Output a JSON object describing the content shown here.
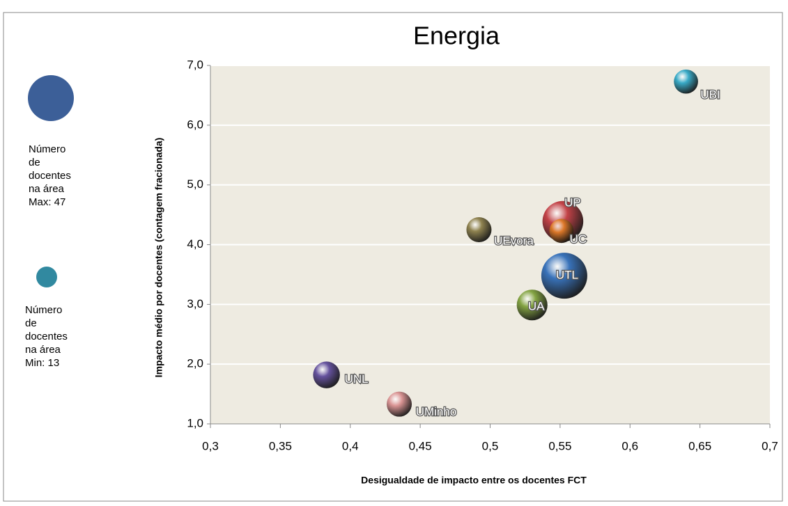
{
  "chart_data": {
    "type": "bubble",
    "title": "Energia",
    "x_label": "Desigualdade de impacto entre os docentes FCT",
    "y_label": "Impacto  médio por docentes (contagem fracionada)",
    "labels": [
      "UBI",
      "UP",
      "UC",
      "UEvora",
      "UTL",
      "UA",
      "UNL",
      "UMinho"
    ],
    "x": [
      0.64,
      0.552,
      0.551,
      0.492,
      0.553,
      0.53,
      0.383,
      0.435
    ],
    "values": [
      6.73,
      4.39,
      4.23,
      4.25,
      3.48,
      2.99,
      1.82,
      1.33
    ],
    "sizes": [
      13,
      37,
      13,
      14,
      47,
      21,
      16,
      14
    ],
    "colors": [
      "#2fa7c6",
      "#c0393f",
      "#e07b28",
      "#8a7d48",
      "#2f6cb8",
      "#7ea03a",
      "#5e4a9a",
      "#d99090"
    ],
    "xlim": [
      0.3,
      0.7
    ],
    "xticks": [
      {
        "value": 0.3,
        "label": "0,3"
      },
      {
        "value": 0.35,
        "label": "0,35"
      },
      {
        "value": 0.4,
        "label": "0,4"
      },
      {
        "value": 0.45,
        "label": "0,45"
      },
      {
        "value": 0.5,
        "label": "0,5"
      },
      {
        "value": 0.55,
        "label": "0,55"
      },
      {
        "value": 0.6,
        "label": "0,6"
      },
      {
        "value": 0.65,
        "label": "0,65"
      },
      {
        "value": 0.7,
        "label": "0,7"
      }
    ],
    "ylim": [
      1,
      7
    ],
    "yticks": [
      {
        "value": 1,
        "label": "1,0"
      },
      {
        "value": 2,
        "label": "2,0"
      },
      {
        "value": 3,
        "label": "3,0"
      },
      {
        "value": 4,
        "label": "4,0"
      },
      {
        "value": 5,
        "label": "5,0"
      },
      {
        "value": 6,
        "label": "6,0"
      },
      {
        "value": 7,
        "label": "7,0"
      }
    ],
    "grid": true,
    "legend": {
      "max_lines": [
        "Número",
        "de",
        "docentes",
        "na área",
        "Max: 47"
      ],
      "max_size": 47,
      "max_color": "#3c5f98",
      "min_lines": [
        "Número",
        "de",
        "docentes",
        "na área",
        "Min: 13"
      ],
      "min_size": 13,
      "min_color": "#3189a0"
    }
  }
}
